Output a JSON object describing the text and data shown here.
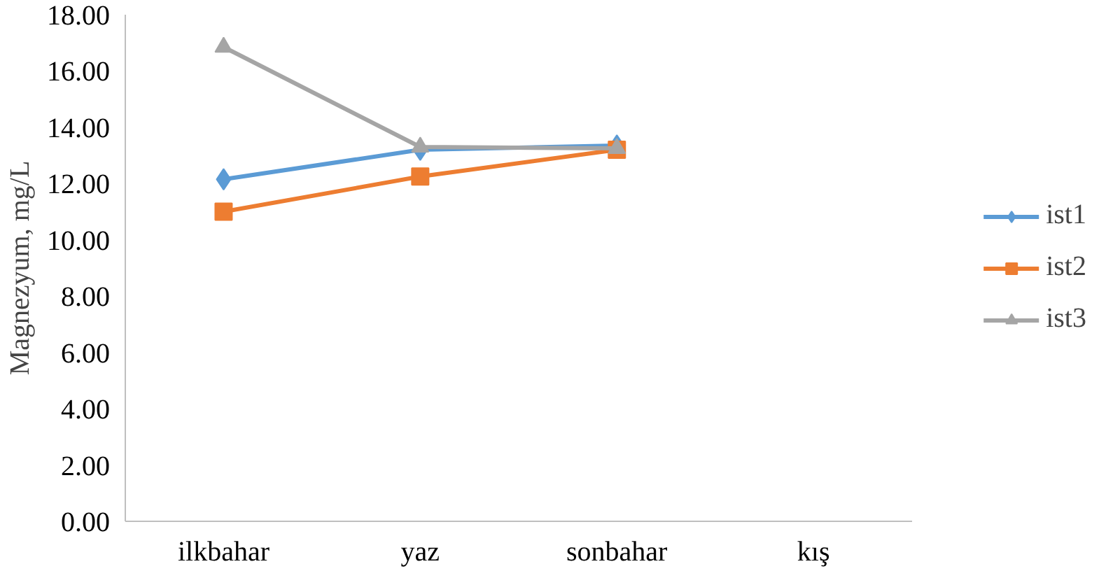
{
  "chart_data": {
    "type": "line",
    "ylabel": "Magnezyum, mg/L",
    "categories": [
      "ilkbahar",
      "yaz",
      "sonbahar",
      "kış"
    ],
    "ylim": [
      0,
      18
    ],
    "yticks": [
      {
        "value": 0,
        "label": "0.00"
      },
      {
        "value": 2,
        "label": "2.00"
      },
      {
        "value": 4,
        "label": "4.00"
      },
      {
        "value": 6,
        "label": "6.00"
      },
      {
        "value": 8,
        "label": "8.00"
      },
      {
        "value": 10,
        "label": "10.00"
      },
      {
        "value": 12,
        "label": "12.00"
      },
      {
        "value": 14,
        "label": "14.00"
      },
      {
        "value": 16,
        "label": "16.00"
      },
      {
        "value": 18,
        "label": "18.00"
      }
    ],
    "series": [
      {
        "name": "ist1",
        "color": "#5b9bd5",
        "marker": "diamond",
        "values": [
          12.15,
          13.2,
          13.35,
          null
        ]
      },
      {
        "name": "ist2",
        "color": "#ed7d31",
        "marker": "square",
        "values": [
          11.0,
          12.25,
          13.2,
          null
        ]
      },
      {
        "name": "ist3",
        "color": "#a5a5a5",
        "marker": "triangle",
        "values": [
          16.85,
          13.3,
          13.25,
          null
        ]
      }
    ],
    "grid": false,
    "legend": "right",
    "line_style": "solid"
  }
}
